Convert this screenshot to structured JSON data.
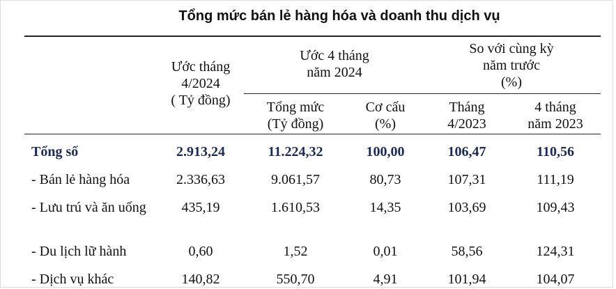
{
  "header": {
    "title": "Tổng mức bán lẻ hàng hóa và doanh thu dịch vụ"
  },
  "table": {
    "headers": {
      "estimate_month": "Ước tháng\n4/2024\n( Tỷ đồng)",
      "estimate_4m": "Ước 4 tháng\nnăm 2024",
      "compare": "So với cùng kỳ\nnăm trước\n(%)",
      "total": "Tổng mức\n(Tỷ đồng)",
      "share": "Cơ cấu\n(%)",
      "month_prev": "Tháng\n4/2023",
      "four_month_prev": "4 tháng\nnăm 2023"
    },
    "rows": [
      [
        "Tổng số",
        "2.913,24",
        "11.224,32",
        "100,00",
        "106,47",
        "110,56"
      ],
      [
        "- Bán lẻ hàng hóa",
        "2.336,63",
        "9.061,57",
        "80,73",
        "107,31",
        "111,19"
      ],
      [
        "- Lưu trú và ăn uống",
        "435,19",
        "1.610,53",
        "14,35",
        "103,69",
        "109,43"
      ],
      [
        "- Du lịch lữ hành",
        "0,60",
        "1,52",
        "0,01",
        "58,56",
        "124,31"
      ],
      [
        "- Dịch vụ khác",
        "140,82",
        "550,70",
        "4,91",
        "101,94",
        "104,07"
      ]
    ]
  }
}
